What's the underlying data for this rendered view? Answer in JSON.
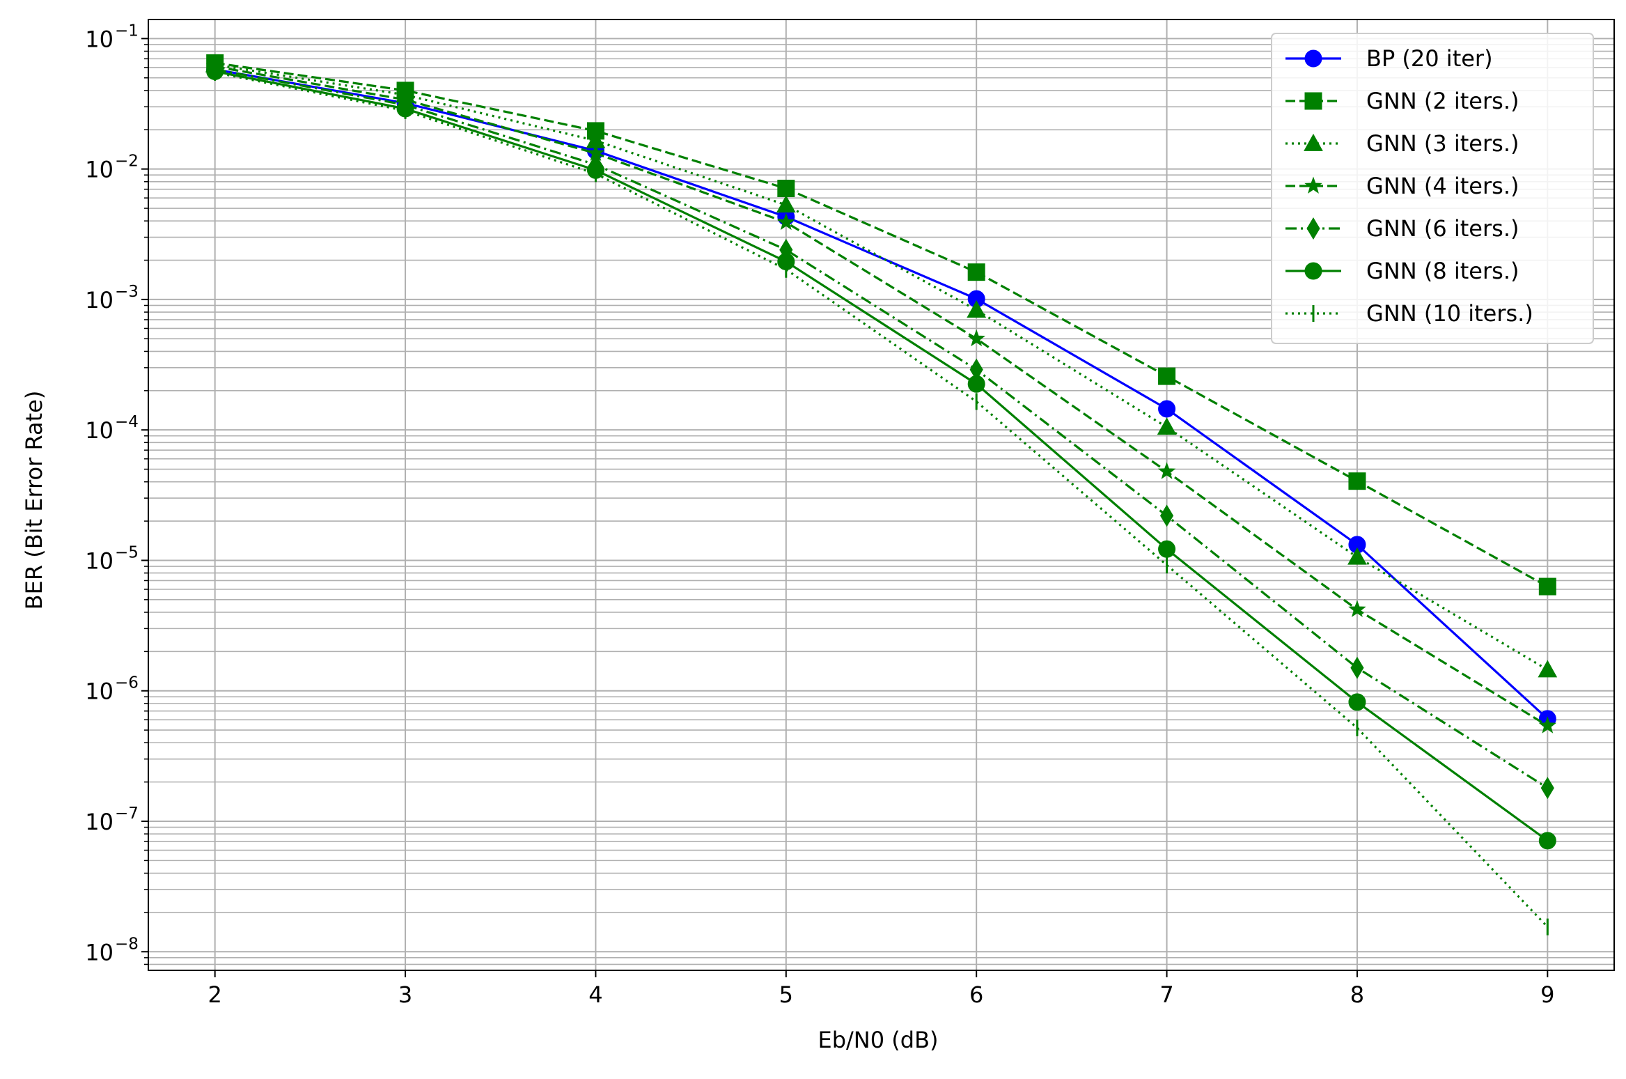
{
  "chart_data": {
    "type": "line",
    "title": "",
    "xlabel": "Eb/N0 (dB)",
    "ylabel": "BER (Bit Error Rate)",
    "x": [
      2,
      3,
      4,
      5,
      6,
      7,
      8,
      9
    ],
    "xlim": [
      1.65,
      9.35
    ],
    "ylim": [
      7.2e-09,
      0.14
    ],
    "yscale": "log",
    "grid": true,
    "legend_position": "top-right",
    "x_ticks": [
      "2",
      "3",
      "4",
      "5",
      "6",
      "7",
      "8",
      "9"
    ],
    "y_ticks": [
      {
        "value": 0.1,
        "mantissa": "10",
        "exponent": "−1"
      },
      {
        "value": 0.01,
        "mantissa": "10",
        "exponent": "−2"
      },
      {
        "value": 0.001,
        "mantissa": "10",
        "exponent": "−3"
      },
      {
        "value": 0.0001,
        "mantissa": "10",
        "exponent": "−4"
      },
      {
        "value": 1e-05,
        "mantissa": "10",
        "exponent": "−5"
      },
      {
        "value": 1e-06,
        "mantissa": "10",
        "exponent": "−6"
      },
      {
        "value": 1e-07,
        "mantissa": "10",
        "exponent": "−7"
      },
      {
        "value": 1e-08,
        "mantissa": "10",
        "exponent": "−8"
      }
    ],
    "series": [
      {
        "name": "BP (20 iter)",
        "color": "#0000ff",
        "linestyle": "solid",
        "marker": "circle",
        "values": [
          0.058,
          0.032,
          0.0138,
          0.0043,
          0.00101,
          0.000145,
          1.32e-05,
          6.1e-07
        ]
      },
      {
        "name": "GNN (2 iters.)",
        "color": "#008000",
        "linestyle": "dashed",
        "marker": "square",
        "values": [
          0.065,
          0.04,
          0.0196,
          0.0071,
          0.00162,
          0.000258,
          4.05e-05,
          6.3e-06
        ]
      },
      {
        "name": "GNN (3 iters.)",
        "color": "#008000",
        "linestyle": "dotted",
        "marker": "triangle",
        "values": [
          0.063,
          0.037,
          0.0165,
          0.0053,
          0.00083,
          0.000105,
          1.06e-05,
          1.45e-06
        ]
      },
      {
        "name": "GNN (4 iters.)",
        "color": "#008000",
        "linestyle": "dashed",
        "marker": "star",
        "values": [
          0.061,
          0.034,
          0.0132,
          0.0039,
          0.0005,
          4.8e-05,
          4.2e-06,
          5.4e-07
        ]
      },
      {
        "name": "GNN (6 iters.)",
        "color": "#008000",
        "linestyle": "dashdot",
        "marker": "diamond",
        "values": [
          0.058,
          0.031,
          0.0108,
          0.0024,
          0.00029,
          2.2e-05,
          1.5e-06,
          1.8e-07
        ]
      },
      {
        "name": "GNN (8 iters.)",
        "color": "#008000",
        "linestyle": "solid",
        "marker": "circle",
        "values": [
          0.056,
          0.029,
          0.0098,
          0.00195,
          0.000225,
          1.22e-05,
          8.2e-07,
          7.1e-08
        ]
      },
      {
        "name": "GNN (10 iters.)",
        "color": "#008000",
        "linestyle": "dotted",
        "marker": "vline",
        "values": [
          0.055,
          0.028,
          0.0092,
          0.0017,
          0.000165,
          9.2e-06,
          5.2e-07,
          1.55e-08
        ]
      }
    ]
  }
}
